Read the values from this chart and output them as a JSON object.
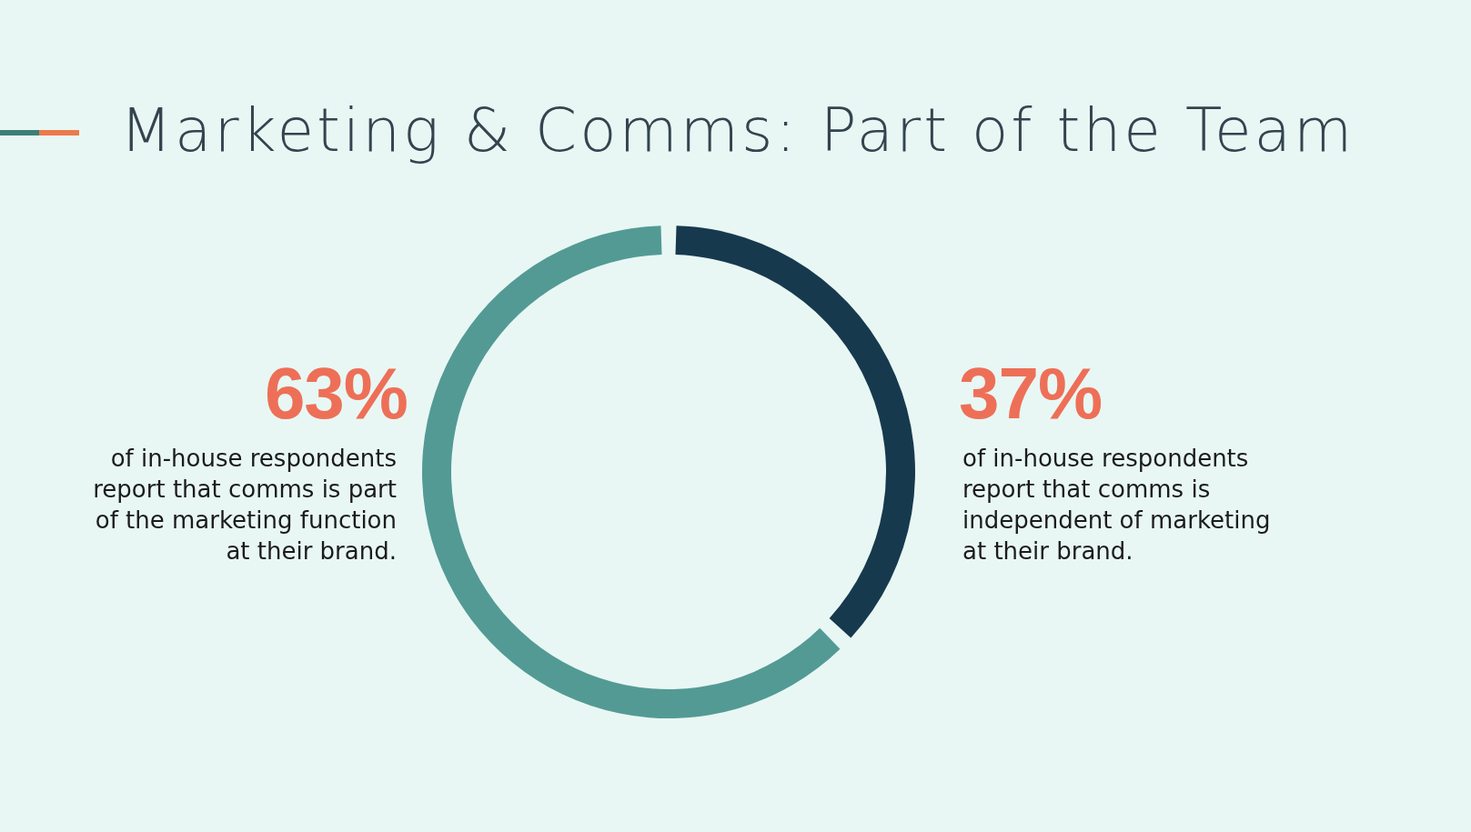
{
  "chart_data": {
    "type": "donut",
    "title": "Marketing & Comms: Part of the Team",
    "categories": [
      "of in-house respondents report that comms is independent of marketing at their brand.",
      "of in-house respondents report that comms is part of the marketing function at their brand."
    ],
    "values": [
      37,
      63
    ],
    "colors": [
      "#17394e",
      "#539a95"
    ],
    "value_labels": [
      "37%",
      "63%"
    ]
  }
}
